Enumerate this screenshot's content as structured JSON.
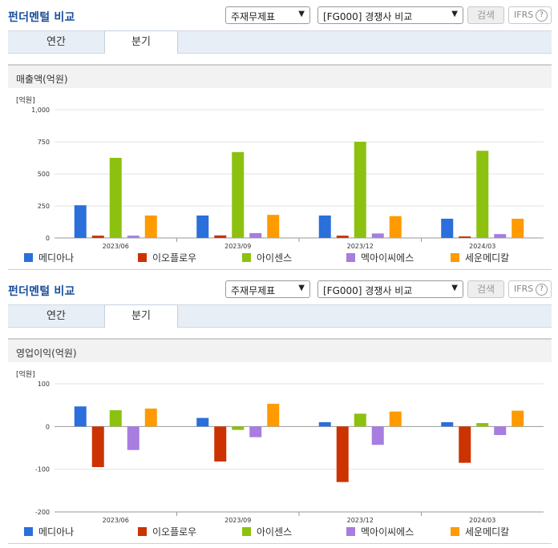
{
  "colors": {
    "title": "#1a4f9c"
  },
  "panels": [
    {
      "title": "펀더멘털 비교",
      "select1": "주재무제표",
      "select2": "[FG000] 경쟁사 비교",
      "search_label": "검색",
      "ifrs_label": "IFRS",
      "help": "?",
      "tabs": [
        "연간",
        "분기"
      ],
      "metric": "매출액(억원)",
      "unit": "[억원]",
      "chart_data": {
        "type": "bar",
        "categories": [
          "2023/06",
          "2023/09",
          "2023/12",
          "2024/03"
        ],
        "ylim": [
          0,
          1000
        ],
        "yticks": [
          0,
          250,
          500,
          750,
          1000
        ],
        "ytick_labels": [
          "0",
          "250",
          "500",
          "750",
          "1,000"
        ],
        "series": [
          {
            "name": "메디아나",
            "color": "#2a6fdb",
            "values": [
              255,
              175,
              175,
              150
            ]
          },
          {
            "name": "이오플로우",
            "color": "#cc3300",
            "values": [
              18,
              20,
              18,
              12
            ]
          },
          {
            "name": "아이센스",
            "color": "#8cc10f",
            "values": [
              625,
              670,
              750,
              680
            ]
          },
          {
            "name": "멕아이씨에스",
            "color": "#a77de0",
            "values": [
              18,
              38,
              35,
              30
            ]
          },
          {
            "name": "세운메디칼",
            "color": "#ff9a00",
            "values": [
              175,
              180,
              170,
              150
            ]
          }
        ]
      }
    },
    {
      "title": "펀더멘털 비교",
      "select1": "주재무제표",
      "select2": "[FG000] 경쟁사 비교",
      "search_label": "검색",
      "ifrs_label": "IFRS",
      "help": "?",
      "tabs": [
        "연간",
        "분기"
      ],
      "metric": "영업이익(억원)",
      "unit": "[억원]",
      "chart_data": {
        "type": "bar",
        "categories": [
          "2023/06",
          "2023/09",
          "2023/12",
          "2024/03"
        ],
        "ylim": [
          -200,
          100
        ],
        "yticks": [
          -200,
          -100,
          0,
          100
        ],
        "ytick_labels": [
          "-200",
          "-100",
          "0",
          "100"
        ],
        "series": [
          {
            "name": "메디아나",
            "color": "#2a6fdb",
            "values": [
              47,
              20,
              10,
              10
            ]
          },
          {
            "name": "이오플로우",
            "color": "#cc3300",
            "values": [
              -95,
              -82,
              -130,
              -85
            ]
          },
          {
            "name": "아이센스",
            "color": "#8cc10f",
            "values": [
              38,
              -8,
              30,
              8
            ]
          },
          {
            "name": "멕아이씨에스",
            "color": "#a77de0",
            "values": [
              -55,
              -25,
              -43,
              -20
            ]
          },
          {
            "name": "세운메디칼",
            "color": "#ff9a00",
            "values": [
              42,
              53,
              35,
              37
            ]
          }
        ]
      }
    }
  ]
}
